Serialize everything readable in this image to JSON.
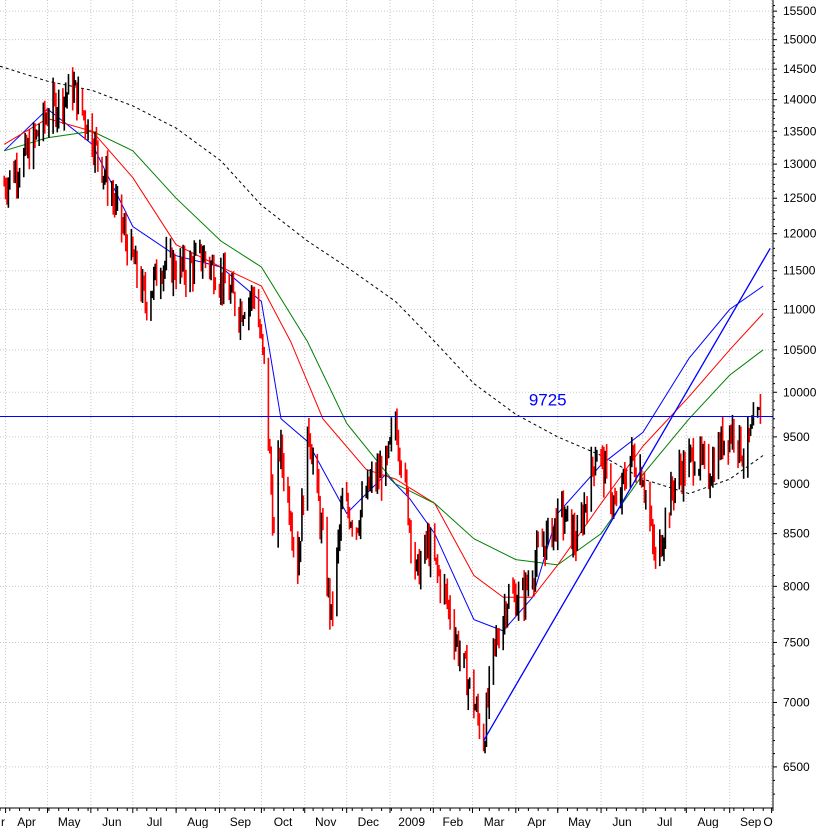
{
  "colors": {
    "background": "#ffffff",
    "grid": "#c8c8c8",
    "bar_up": "#000000",
    "bar_down": "#ff0000",
    "ma_fast": "#0000ff",
    "ma_mid": "#ff0000",
    "ma_slow": "#008000",
    "ma_long": "#000000",
    "level_line": "#0000ff",
    "trendline": "#0000ff",
    "annotation": "#0000ff"
  },
  "chart_data": {
    "type": "candlestick",
    "title": "",
    "xlabel": "",
    "ylabel": "",
    "ylim": [
      6200,
      15700
    ],
    "grid": true,
    "y_axis_side": "right",
    "y_ticks": [
      6500,
      7000,
      7500,
      8000,
      8500,
      9000,
      9500,
      10000,
      10500,
      11000,
      11500,
      12000,
      12500,
      13000,
      13500,
      14000,
      14500,
      15000,
      15500
    ],
    "y_tick_labels": [
      "6500",
      "7000",
      "7500",
      "8000",
      "8500",
      "9000",
      "9500",
      "10000",
      "10500",
      "11000",
      "11500",
      "12000",
      "12500",
      "13000",
      "13500",
      "14000",
      "14500",
      "15000",
      "15500"
    ],
    "x_ticks": [
      "2008-03",
      "2008-04",
      "2008-05",
      "2008-06",
      "2008-07",
      "2008-08",
      "2008-09",
      "2008-10",
      "2008-11",
      "2008-12",
      "2009-01",
      "2009-02",
      "2009-03",
      "2009-04",
      "2009-05",
      "2009-06",
      "2009-07",
      "2009-08",
      "2009-09",
      "2009-10"
    ],
    "x_tick_labels": [
      "r",
      "Apr",
      "May",
      "Jun",
      "Jul",
      "Aug",
      "Sep",
      "Oct",
      "Nov",
      "Dec",
      "2009",
      "Feb",
      "Mar",
      "Apr",
      "May",
      "Jun",
      "Jul",
      "Aug",
      "Sep",
      "O"
    ],
    "x_range": [
      "2008-03-28",
      "2009-10-02"
    ],
    "series": [
      {
        "kind": "price_path",
        "x": [
          "2008-03-31",
          "2008-04-18",
          "2008-05-02",
          "2008-05-19",
          "2008-05-30",
          "2008-06-20",
          "2008-07-10",
          "2008-07-22",
          "2008-08-08",
          "2008-08-20",
          "2008-09-02",
          "2008-09-15",
          "2008-09-26",
          "2008-10-03",
          "2008-10-10",
          "2008-10-14",
          "2008-10-22",
          "2008-10-27",
          "2008-11-04",
          "2008-11-20",
          "2008-11-28",
          "2008-12-08",
          "2008-12-18",
          "2008-12-30",
          "2009-01-05",
          "2009-01-20",
          "2009-01-28",
          "2009-02-10",
          "2009-02-20",
          "2009-03-02",
          "2009-03-09",
          "2009-03-16",
          "2009-03-26",
          "2009-04-06",
          "2009-04-17",
          "2009-05-04",
          "2009-05-15",
          "2009-05-29",
          "2009-06-12",
          "2009-06-22",
          "2009-07-01",
          "2009-07-10",
          "2009-07-24",
          "2009-08-07",
          "2009-08-17",
          "2009-08-28",
          "2009-09-04",
          "2009-09-11",
          "2009-09-23"
        ],
        "values": [
          12700,
          13200,
          13800,
          14200,
          13600,
          12300,
          11100,
          11600,
          11500,
          11700,
          11400,
          11000,
          11200,
          10300,
          8450,
          9400,
          8700,
          8200,
          9600,
          7700,
          8800,
          8600,
          9000,
          9200,
          9700,
          8100,
          8400,
          7900,
          7400,
          7000,
          6700,
          7400,
          7900,
          7900,
          8300,
          8700,
          8400,
          9400,
          8700,
          9300,
          9100,
          8200,
          9050,
          9300,
          9100,
          9500,
          9600,
          9300,
          9750
        ]
      },
      {
        "kind": "moving_average",
        "color": "#0000ff",
        "x": [
          "2008-03-31",
          "2008-05-01",
          "2008-06-02",
          "2008-07-01",
          "2008-08-01",
          "2008-09-02",
          "2008-10-01",
          "2008-10-15",
          "2008-11-03",
          "2008-12-01",
          "2008-12-29",
          "2009-01-15",
          "2009-02-02",
          "2009-03-02",
          "2009-03-23",
          "2009-04-13",
          "2009-05-01",
          "2009-06-01",
          "2009-07-01",
          "2009-08-03",
          "2009-09-01",
          "2009-09-25"
        ],
        "values": [
          13200,
          13850,
          13300,
          12100,
          11700,
          11550,
          11100,
          9700,
          9450,
          8700,
          9100,
          8850,
          8500,
          7700,
          7600,
          7900,
          8700,
          9200,
          9550,
          10400,
          11000,
          11300
        ]
      },
      {
        "kind": "moving_average",
        "color": "#ff0000",
        "x": [
          "2008-03-31",
          "2008-05-01",
          "2008-06-02",
          "2008-07-01",
          "2008-08-01",
          "2008-09-02",
          "2008-10-01",
          "2008-10-22",
          "2008-11-14",
          "2008-12-15",
          "2009-01-05",
          "2009-02-02",
          "2009-03-02",
          "2009-03-23",
          "2009-04-13",
          "2009-05-01",
          "2009-06-01",
          "2009-07-01",
          "2009-08-03",
          "2009-09-01",
          "2009-09-25"
        ],
        "values": [
          13300,
          13700,
          13500,
          12800,
          11850,
          11550,
          11300,
          10600,
          9700,
          9150,
          9050,
          8800,
          8100,
          7900,
          7900,
          8200,
          8800,
          9400,
          9950,
          10500,
          10950
        ]
      },
      {
        "kind": "moving_average",
        "color": "#008000",
        "x": [
          "2008-03-31",
          "2008-05-01",
          "2008-06-02",
          "2008-07-01",
          "2008-08-01",
          "2008-09-02",
          "2008-10-01",
          "2008-11-03",
          "2008-12-01",
          "2009-01-05",
          "2009-02-02",
          "2009-03-02",
          "2009-04-01",
          "2009-05-01",
          "2009-06-01",
          "2009-07-01",
          "2009-08-03",
          "2009-09-01",
          "2009-09-25"
        ],
        "values": [
          13200,
          13400,
          13500,
          13200,
          12500,
          11900,
          11550,
          10600,
          9650,
          9000,
          8800,
          8450,
          8250,
          8200,
          8500,
          9100,
          9700,
          10200,
          10500
        ]
      },
      {
        "kind": "moving_average",
        "color": "#000000",
        "dashed": true,
        "x": [
          "2008-03-28",
          "2008-05-01",
          "2008-06-02",
          "2008-07-01",
          "2008-08-01",
          "2008-09-02",
          "2008-10-01",
          "2008-11-03",
          "2008-12-01",
          "2009-01-05",
          "2009-02-02",
          "2009-03-02",
          "2009-04-01",
          "2009-05-01",
          "2009-06-01",
          "2009-07-01",
          "2009-08-03",
          "2009-09-01",
          "2009-09-25"
        ],
        "values": [
          14550,
          14300,
          14150,
          13900,
          13550,
          13050,
          12400,
          11900,
          11550,
          11100,
          10600,
          10100,
          9750,
          9500,
          9300,
          9050,
          8900,
          9050,
          9300
        ]
      }
    ],
    "horizontal_lines": [
      {
        "value": 9725,
        "label": "9725"
      }
    ],
    "trendlines": [
      {
        "x": [
          "2009-03-09",
          "2009-09-30"
        ],
        "values": [
          6700,
          11800
        ]
      }
    ]
  }
}
